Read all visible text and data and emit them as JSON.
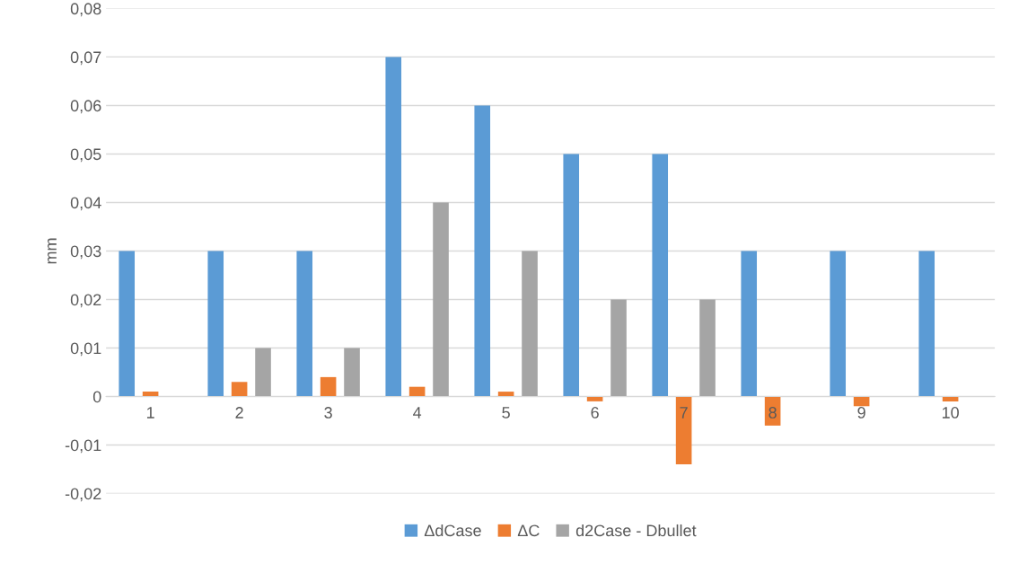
{
  "chart_data": {
    "type": "bar",
    "ylabel": "mm",
    "categories": [
      "1",
      "2",
      "3",
      "4",
      "5",
      "6",
      "7",
      "8",
      "9",
      "10"
    ],
    "series": [
      {
        "name": "ΔdCase",
        "color": "#5b9bd5",
        "values": [
          0.03,
          0.03,
          0.03,
          0.07,
          0.06,
          0.05,
          0.05,
          0.03,
          0.03,
          0.03
        ]
      },
      {
        "name": "ΔC",
        "color": "#ed7d31",
        "values": [
          0.001,
          0.003,
          0.004,
          0.002,
          0.001,
          -0.001,
          -0.014,
          -0.006,
          -0.002,
          -0.001
        ]
      },
      {
        "name": "d2Case - Dbullet",
        "color": "#a5a5a5",
        "values": [
          0,
          0.01,
          0.01,
          0.04,
          0.03,
          0.02,
          0.02,
          0,
          0,
          0
        ]
      }
    ],
    "ylim": [
      -0.02,
      0.08
    ],
    "yticks": [
      {
        "value": -0.02,
        "label": "-0,02"
      },
      {
        "value": -0.01,
        "label": "-0,01"
      },
      {
        "value": 0,
        "label": "0"
      },
      {
        "value": 0.01,
        "label": "0,01"
      },
      {
        "value": 0.02,
        "label": "0,02"
      },
      {
        "value": 0.03,
        "label": "0,03"
      },
      {
        "value": 0.04,
        "label": "0,04"
      },
      {
        "value": 0.05,
        "label": "0,05"
      },
      {
        "value": 0.06,
        "label": "0,06"
      },
      {
        "value": 0.07,
        "label": "0,07"
      },
      {
        "value": 0.08,
        "label": "0,08"
      }
    ],
    "grid": "y",
    "legend": "bottom"
  }
}
